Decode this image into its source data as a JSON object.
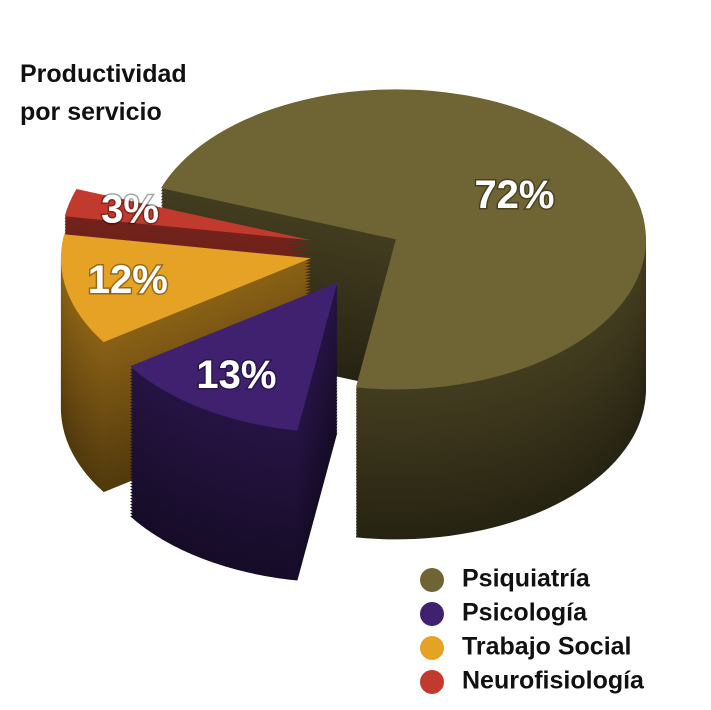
{
  "chart_data": {
    "type": "pie",
    "title": "Productividad por servicio",
    "categories": [
      "Psiquiatría",
      "Psicología",
      "Trabajo Social",
      "Neurofisiología"
    ],
    "values": [
      72,
      13,
      12,
      3
    ],
    "value_labels": [
      "72%",
      "13%",
      "12%",
      "3%"
    ],
    "colors": [
      "#6f6534",
      "#3f2170",
      "#e6a224",
      "#c23a2e"
    ],
    "legend": "bottom-right"
  }
}
